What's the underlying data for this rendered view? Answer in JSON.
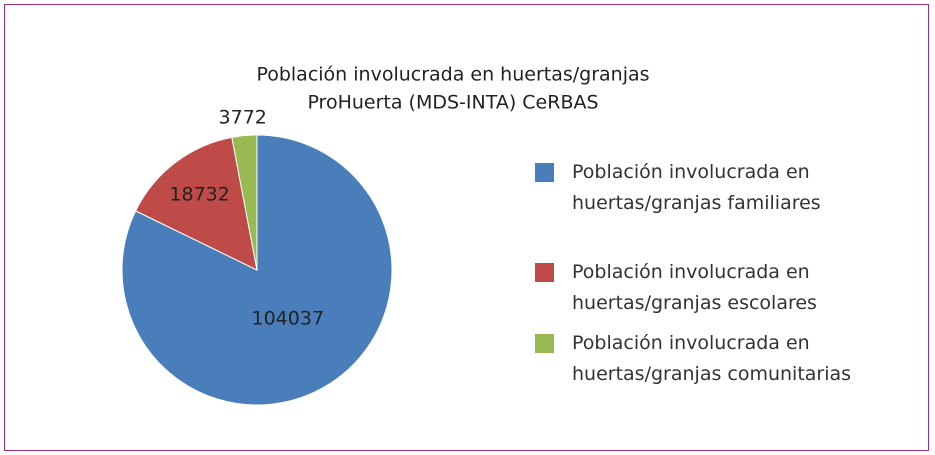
{
  "chart_data": {
    "type": "pie",
    "title": [
      "Población involucrada en huertas/granjas",
      "ProHuerta (MDS-INTA) CeRBAS"
    ],
    "categories": [
      "Población involucrada en huertas/granjas familiares",
      "Población involucrada en huertas/granjas escolares",
      "Población involucrada en huertas/granjas comunitarias"
    ],
    "values": [
      104037,
      18732,
      3772
    ],
    "colors": [
      "#4a7ebb",
      "#be4b48",
      "#98b954"
    ],
    "legend": "right"
  }
}
